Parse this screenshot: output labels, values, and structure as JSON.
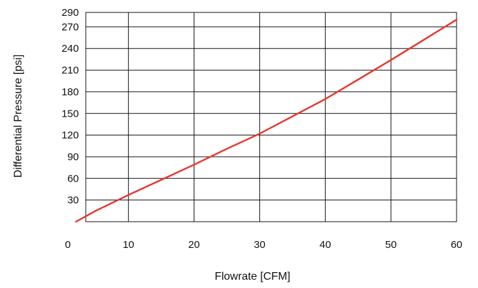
{
  "chart_data": {
    "type": "line",
    "title": "",
    "xlabel": "Flowrate [CFM]",
    "ylabel": "Differential Pressure [psi]",
    "xlim": [
      0,
      60
    ],
    "ylim": [
      0,
      290
    ],
    "x_ticks": [
      0,
      10,
      20,
      30,
      40,
      50,
      60
    ],
    "y_ticks": [
      30,
      60,
      90,
      120,
      150,
      180,
      210,
      240,
      270,
      290
    ],
    "grid": true,
    "legend": "none",
    "series": [
      {
        "color": "#e8332a",
        "x": [
          2,
          5,
          10,
          15,
          20,
          25,
          30,
          35,
          40,
          45,
          50,
          55,
          60
        ],
        "y": [
          0,
          15,
          37,
          58,
          79,
          101,
          122,
          146,
          170,
          197,
          224,
          252,
          280
        ]
      }
    ]
  }
}
